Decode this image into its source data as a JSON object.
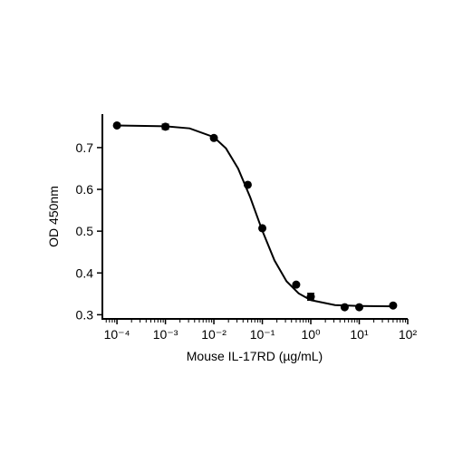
{
  "chart_data": {
    "type": "scatter",
    "xlabel": "Mouse IL-17RD (µg/mL)",
    "ylabel": "OD 450nm",
    "xscale": "log",
    "xlim": [
      5e-05,
      100
    ],
    "ylim": [
      0.29,
      0.78
    ],
    "xticks": [
      {
        "value": 0.0001,
        "label": "10⁻⁴"
      },
      {
        "value": 0.001,
        "label": "10⁻³"
      },
      {
        "value": 0.01,
        "label": "10⁻²"
      },
      {
        "value": 0.1,
        "label": "10⁻¹"
      },
      {
        "value": 1,
        "label": "10⁰"
      },
      {
        "value": 10,
        "label": "10¹"
      },
      {
        "value": 100,
        "label": "10²"
      }
    ],
    "xminorticks": [
      6e-05,
      7e-05,
      8e-05,
      9e-05,
      0.0002,
      0.0003,
      0.0004,
      0.0005,
      0.0006,
      0.0007,
      0.0008,
      0.0009,
      0.002,
      0.003,
      0.004,
      0.005,
      0.006,
      0.007,
      0.008,
      0.009,
      0.02,
      0.03,
      0.04,
      0.05,
      0.06,
      0.07,
      0.08,
      0.09,
      0.2,
      0.3,
      0.4,
      0.5,
      0.6,
      0.7,
      0.8,
      0.9,
      2,
      3,
      4,
      5,
      6,
      7,
      8,
      9,
      20,
      30,
      40,
      50,
      60,
      70,
      80,
      90
    ],
    "yticks": [
      0.3,
      0.4,
      0.5,
      0.6,
      0.7
    ],
    "color": "#000000",
    "series": [
      {
        "type": "scatter",
        "x": [
          0.0001,
          0.001,
          0.01,
          0.05,
          0.1,
          0.5,
          1,
          5,
          10,
          50
        ],
        "values": [
          0.753,
          0.75,
          0.723,
          0.611,
          0.507,
          0.372,
          0.343,
          0.318,
          0.318,
          0.322
        ],
        "errors": [
          null,
          0.006,
          null,
          null,
          null,
          null,
          0.008,
          null,
          null,
          null
        ]
      },
      {
        "type": "line",
        "x": [
          0.0001,
          0.001,
          0.00316,
          0.01,
          0.0178,
          0.0316,
          0.0562,
          0.1,
          0.178,
          0.316,
          0.562,
          1,
          3.16,
          10,
          50
        ],
        "values": [
          0.753,
          0.751,
          0.746,
          0.725,
          0.698,
          0.65,
          0.581,
          0.501,
          0.43,
          0.38,
          0.351,
          0.335,
          0.323,
          0.321,
          0.32
        ]
      }
    ]
  }
}
